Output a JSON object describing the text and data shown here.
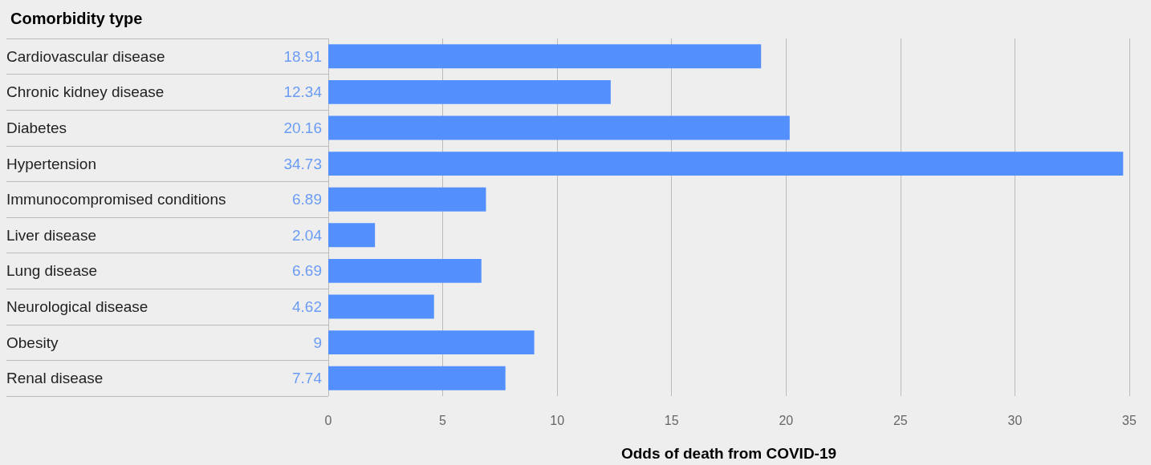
{
  "chart_data": {
    "type": "bar",
    "orientation": "horizontal",
    "ylabel": "Comorbidity type",
    "xlabel": "Odds of death from COVID-19",
    "categories": [
      "Cardiovascular disease",
      "Chronic kidney disease",
      "Diabetes",
      "Hypertension",
      "Immunocompromised conditions",
      "Liver disease",
      "Lung disease",
      "Neurological disease",
      "Obesity",
      "Renal disease"
    ],
    "values": [
      18.91,
      12.34,
      20.16,
      34.73,
      6.89,
      2.04,
      6.69,
      4.62,
      9,
      7.74
    ],
    "color": "#5390fe",
    "data_labels": true,
    "xlim": [
      0,
      35
    ],
    "xticks": [
      0,
      5,
      10,
      15,
      20,
      25,
      30,
      35
    ],
    "grid": "x"
  }
}
